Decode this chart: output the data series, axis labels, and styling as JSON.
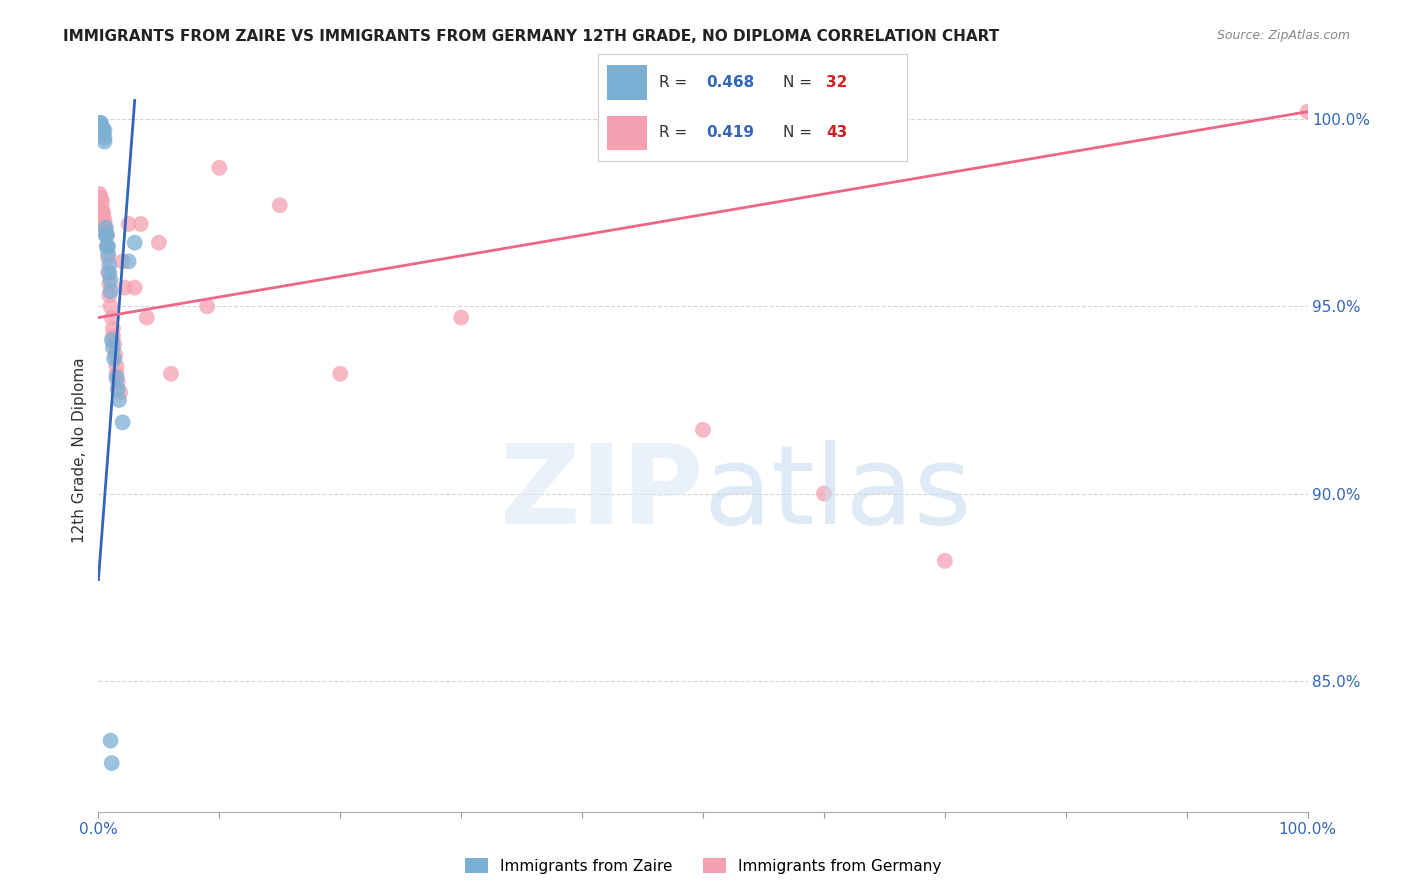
{
  "title": "IMMIGRANTS FROM ZAIRE VS IMMIGRANTS FROM GERMANY 12TH GRADE, NO DIPLOMA CORRELATION CHART",
  "source": "Source: ZipAtlas.com",
  "ylabel": "12th Grade, No Diploma",
  "zaire_R": 0.468,
  "zaire_N": 32,
  "germany_R": 0.419,
  "germany_N": 43,
  "zaire_color": "#7BAFD4",
  "germany_color": "#F4A0B0",
  "zaire_line_color": "#3366BB",
  "germany_line_color": "#EE6688",
  "background_color": "#FFFFFF",
  "xmin": 0.0,
  "xmax": 1.0,
  "ymin": 0.815,
  "ymax": 1.008,
  "yticks": [
    0.85,
    0.9,
    0.95,
    1.0
  ],
  "ytick_labels": [
    "85.0%",
    "90.0%",
    "95.0%",
    "100.0%"
  ],
  "zaire_line_x0": 0.0,
  "zaire_line_y0": 0.877,
  "zaire_line_x1": 0.03,
  "zaire_line_y1": 1.005,
  "germany_line_x0": 0.0,
  "germany_line_y0": 0.947,
  "germany_line_x1": 1.0,
  "germany_line_y1": 1.002,
  "zaire_x": [
    0.001,
    0.001,
    0.002,
    0.002,
    0.003,
    0.003,
    0.004,
    0.004,
    0.005,
    0.005,
    0.005,
    0.006,
    0.006,
    0.007,
    0.007,
    0.008,
    0.008,
    0.009,
    0.009,
    0.01,
    0.01,
    0.011,
    0.012,
    0.013,
    0.015,
    0.016,
    0.017,
    0.02,
    0.025,
    0.03,
    0.01,
    0.011
  ],
  "zaire_y": [
    0.999,
    0.998,
    0.999,
    0.998,
    0.998,
    0.997,
    0.997,
    0.996,
    0.997,
    0.995,
    0.994,
    0.971,
    0.969,
    0.969,
    0.966,
    0.966,
    0.964,
    0.961,
    0.959,
    0.957,
    0.954,
    0.941,
    0.939,
    0.936,
    0.931,
    0.928,
    0.925,
    0.919,
    0.962,
    0.967,
    0.834,
    0.828
  ],
  "germany_x": [
    0.001,
    0.002,
    0.003,
    0.003,
    0.004,
    0.004,
    0.005,
    0.005,
    0.006,
    0.006,
    0.007,
    0.007,
    0.008,
    0.008,
    0.009,
    0.009,
    0.01,
    0.011,
    0.012,
    0.012,
    0.013,
    0.014,
    0.015,
    0.015,
    0.016,
    0.018,
    0.02,
    0.022,
    0.025,
    0.03,
    0.035,
    0.04,
    0.05,
    0.06,
    0.09,
    0.1,
    0.15,
    0.2,
    0.3,
    0.5,
    0.6,
    0.7,
    1.0
  ],
  "germany_y": [
    0.98,
    0.979,
    0.978,
    0.976,
    0.975,
    0.974,
    0.973,
    0.972,
    0.971,
    0.97,
    0.969,
    0.966,
    0.963,
    0.959,
    0.956,
    0.953,
    0.95,
    0.947,
    0.944,
    0.942,
    0.94,
    0.937,
    0.934,
    0.932,
    0.93,
    0.927,
    0.962,
    0.955,
    0.972,
    0.955,
    0.972,
    0.947,
    0.967,
    0.932,
    0.95,
    0.987,
    0.977,
    0.932,
    0.947,
    0.917,
    0.9,
    0.882,
    1.002
  ]
}
